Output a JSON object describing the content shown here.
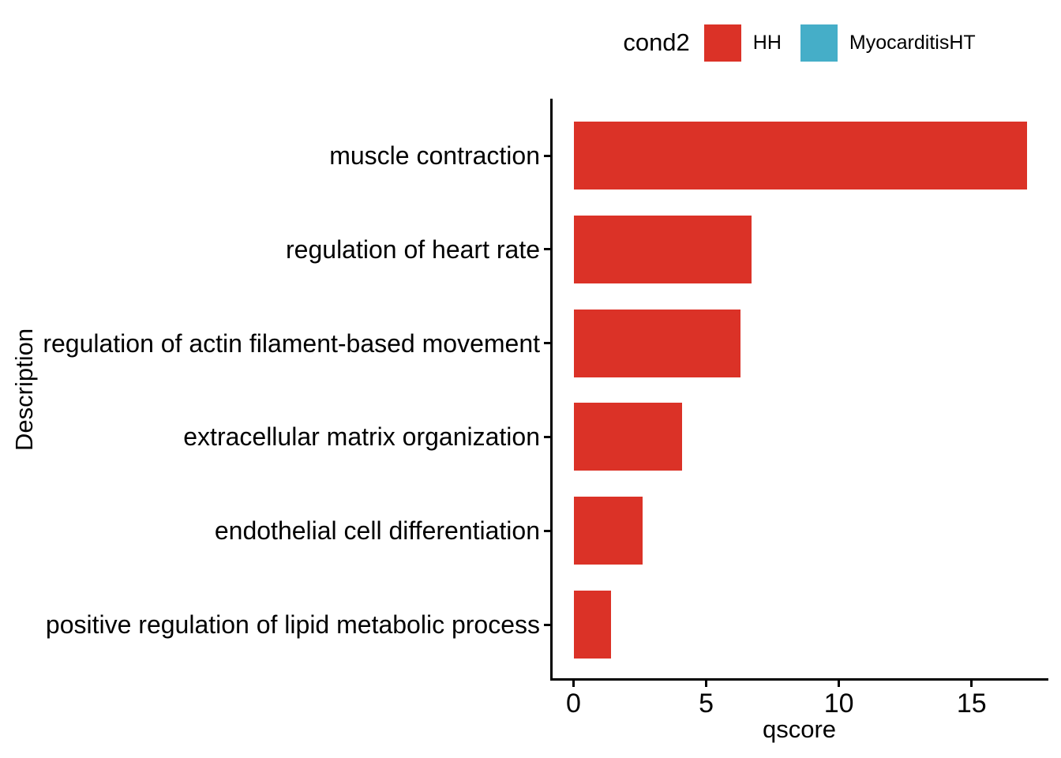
{
  "legend": {
    "title": "cond2",
    "items": [
      {
        "label": "HH",
        "color": "#DB3227"
      },
      {
        "label": "MyocarditisHT",
        "color": "#45AEC8"
      }
    ]
  },
  "chart_data": {
    "type": "bar",
    "orientation": "horizontal",
    "title": "",
    "xlabel": "qscore",
    "ylabel": "Description",
    "categories": [
      "muscle contraction",
      "regulation of heart rate",
      "regulation of actin filament-based movement",
      "extracellular matrix organization",
      "endothelial cell differentiation",
      "positive regulation of lipid metabolic process"
    ],
    "series": [
      {
        "name": "HH",
        "color": "#DB3227",
        "values": [
          17.1,
          6.7,
          6.3,
          4.1,
          2.6,
          1.4
        ]
      }
    ],
    "x_ticks": [
      0,
      5,
      10,
      15
    ],
    "xlim": [
      0,
      17.9
    ],
    "grid": false,
    "legend_position": "top",
    "bar_fill_legend": "cond2"
  }
}
